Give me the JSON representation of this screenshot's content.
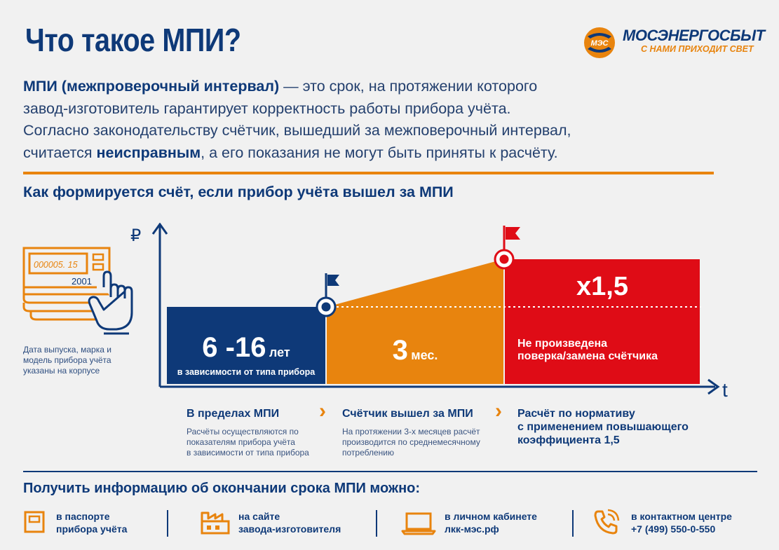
{
  "header": {
    "title": "Что такое МПИ?",
    "logo_badge": "МЭС",
    "logo_name": "МОСЭНЕРГОСБЫТ",
    "logo_slogan": "С НАМИ ПРИХОДИТ СВЕТ"
  },
  "intro": {
    "term": "МПИ (межпроверочный интервал)",
    "line1_rest": " — это срок, на протяжении которого",
    "line2": "завод-изготовитель гарантирует корректность работы прибора учёта.",
    "line3": "Согласно законодательству счётчик, вышедший за межповерочный интервал,",
    "line4_start": "считается ",
    "line4_bold": "неисправным",
    "line4_end": ", а его показания не могут быть приняты к расчёту."
  },
  "subtitle": "Как формируется счёт, если прибор учёта вышел за МПИ",
  "meter": {
    "display_value": "000005. 15",
    "year": "2001",
    "caption": "Дата выпуска, марка и модель прибора учёта указаны на корпусе"
  },
  "chart": {
    "y_axis_symbol": "₽",
    "x_axis_symbol": "t",
    "colors": {
      "blue": "#0e3978",
      "orange": "#e8840e",
      "red": "#df0c16"
    },
    "block1": {
      "value": "6 -16",
      "unit": "лет",
      "note": "в зависимости от типа прибора"
    },
    "block2": {
      "value": "3",
      "unit": "мес."
    },
    "block3": {
      "multiplier": "х1,5",
      "line1": "Не произведена",
      "line2": "поверка/замена счётчика"
    }
  },
  "phases": [
    {
      "title": "В пределах МПИ",
      "text": [
        "Расчёты осуществляются по",
        "показателям прибора учёта",
        "в зависимости от типа прибора"
      ]
    },
    {
      "title": "Счётчик вышел за МПИ",
      "text": [
        "На протяжении 3-х месяцев расчёт",
        "производится по среднемесячному",
        "потреблению"
      ]
    },
    {
      "title_lines": [
        "Расчёт по нормативу",
        "с применением повышающего",
        "коэффициента 1,5"
      ]
    }
  ],
  "info": {
    "title": "Получить информацию об окончании срока МПИ можно:",
    "sources": [
      {
        "icon": "passport-icon",
        "line1": "в паспорте",
        "line2": "прибора учёта"
      },
      {
        "icon": "factory-icon",
        "line1": "на сайте",
        "line2": "завода-изготовителя"
      },
      {
        "icon": "laptop-icon",
        "line1": "в личном кабинете",
        "line2": "лкк-мэс.рф"
      },
      {
        "icon": "phone-icon",
        "line1": "в контактном центре",
        "line2": "+7 (499) 550-0-550"
      }
    ]
  }
}
